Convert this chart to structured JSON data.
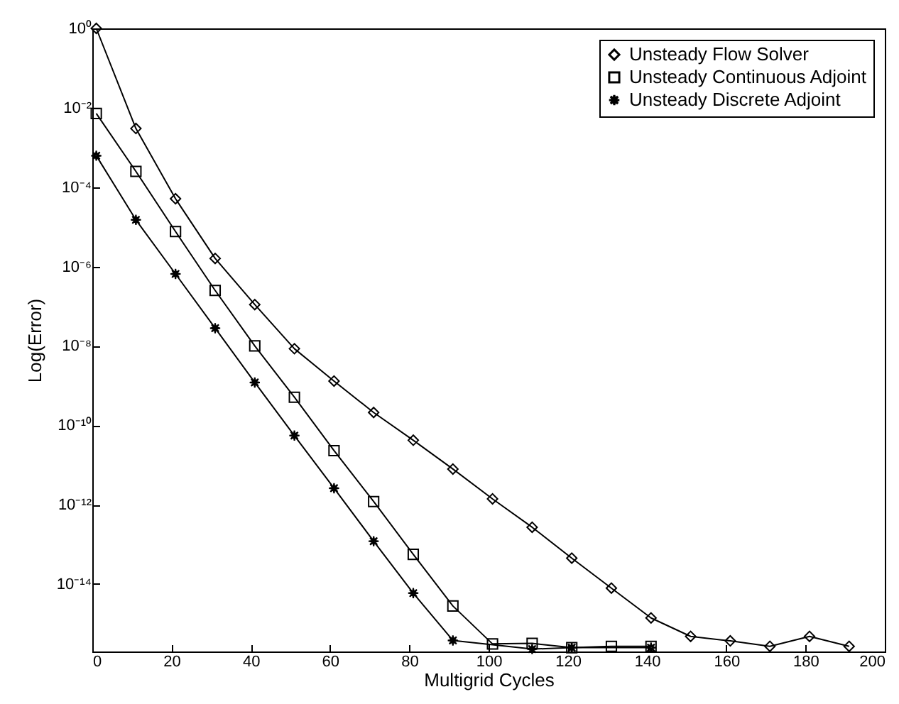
{
  "chart_data": {
    "type": "line",
    "xlabel": "Multigrid Cycles",
    "ylabel": "Log(Error)",
    "log": "y",
    "grid": false,
    "legend": "top right",
    "xlim": [
      0,
      200
    ],
    "xticks": [
      0,
      20,
      40,
      60,
      80,
      100,
      120,
      140,
      160,
      180,
      200
    ],
    "ylim": [
      2e-16,
      1
    ],
    "yticks": [
      {
        "value": 1,
        "label": "10⁰"
      },
      {
        "value": 0.01,
        "label": "10⁻²"
      },
      {
        "value": 0.0001,
        "label": "10⁻⁴"
      },
      {
        "value": 1e-06,
        "label": "10⁻⁶"
      },
      {
        "value": 1e-08,
        "label": "10⁻⁸"
      },
      {
        "value": 1e-10,
        "label": "10⁻¹⁰"
      },
      {
        "value": 1e-12,
        "label": "10⁻¹²"
      },
      {
        "value": 1e-14,
        "label": "10⁻¹⁴"
      }
    ],
    "series": [
      {
        "name": "Unsteady Flow Solver",
        "color": "#000000",
        "marker": "diamond",
        "x": [
          1,
          11,
          21,
          31,
          41,
          51,
          61,
          71,
          81,
          91,
          101,
          111,
          121,
          131,
          141,
          151,
          161,
          171,
          181,
          191
        ],
        "values": [
          1,
          0.003,
          5.1e-05,
          1.6e-06,
          1.1e-07,
          8.5e-09,
          1.3e-09,
          2.1e-10,
          4.2e-11,
          7.9e-12,
          1.4e-12,
          2.7e-13,
          4.5e-14,
          7.9e-15,
          1.4e-15,
          4.8e-16,
          3.7e-16,
          2.7e-16,
          4.8e-16,
          2.7e-16
        ]
      },
      {
        "name": "Unsteady Continuous Adjoint",
        "color": "#000000",
        "marker": "square",
        "x": [
          1,
          11,
          21,
          31,
          41,
          51,
          61,
          71,
          81,
          91,
          101,
          111,
          121,
          131,
          141
        ],
        "values": [
          0.0072,
          0.00025,
          7.6e-06,
          2.5e-07,
          1e-08,
          5.1e-10,
          2.3e-11,
          1.2e-12,
          5.6e-14,
          2.8e-15,
          3.1e-16,
          3.2e-16,
          2.5e-16,
          2.7e-16,
          2.7e-16
        ]
      },
      {
        "name": "Unsteady Discrete Adjoint",
        "color": "#000000",
        "marker": "star",
        "x": [
          1,
          11,
          21,
          31,
          41,
          51,
          61,
          71,
          81,
          91,
          111,
          121,
          141
        ],
        "values": [
          0.00062,
          1.5e-05,
          6.5e-07,
          2.8e-08,
          1.2e-09,
          5.5e-11,
          2.6e-12,
          1.2e-13,
          5.9e-15,
          3.8e-16,
          2.3e-16,
          2.5e-16,
          2.5e-16
        ]
      }
    ]
  }
}
